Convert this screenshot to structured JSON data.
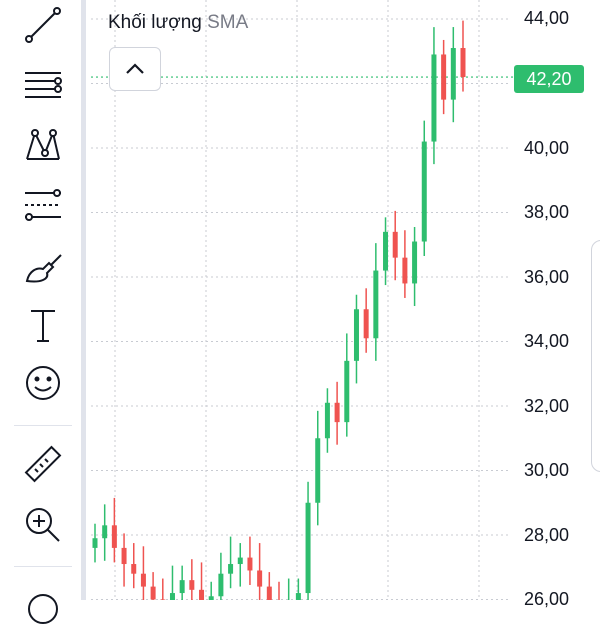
{
  "legend": {
    "title": "Khối lượng",
    "indicator": "SMA"
  },
  "last_price": "42,20",
  "colors": {
    "up": "#2ebd6e",
    "down": "#ef5350",
    "grid": "#c8cbd2",
    "last_line": "#2ebd6e"
  },
  "toolbar": [
    {
      "name": "trend-line-icon"
    },
    {
      "name": "horizontal-lines-icon"
    },
    {
      "name": "pattern-icon"
    },
    {
      "name": "fib-retracement-icon"
    },
    {
      "name": "brush-icon"
    },
    {
      "name": "text-tool-icon"
    },
    {
      "name": "emoji-icon"
    },
    {
      "name": "ruler-icon"
    },
    {
      "name": "zoom-in-icon"
    }
  ],
  "price_axis": [
    "44,00",
    "42,00",
    "40,00",
    "38,00",
    "36,00",
    "34,00",
    "32,00",
    "30,00",
    "28,00",
    "26,00"
  ],
  "chart_data": {
    "type": "candlestick",
    "y_axis_ticks": [
      44,
      42,
      40,
      38,
      36,
      34,
      32,
      30,
      28,
      26
    ],
    "last_price": 42.2,
    "series_close_approx": [
      27.9,
      28.3,
      27.6,
      27.1,
      26.8,
      26.4,
      26.0,
      25.8,
      26.2,
      26.6,
      26.3,
      25.9,
      26.1,
      26.8,
      27.1,
      27.3,
      26.9,
      26.4,
      25.9,
      25.6,
      25.8,
      26.2,
      29.0,
      31.0,
      32.1,
      31.5,
      33.4,
      35.0,
      34.1,
      36.2,
      37.4,
      36.6,
      35.8,
      37.1,
      40.2,
      42.9,
      41.5,
      43.1,
      42.2
    ]
  }
}
